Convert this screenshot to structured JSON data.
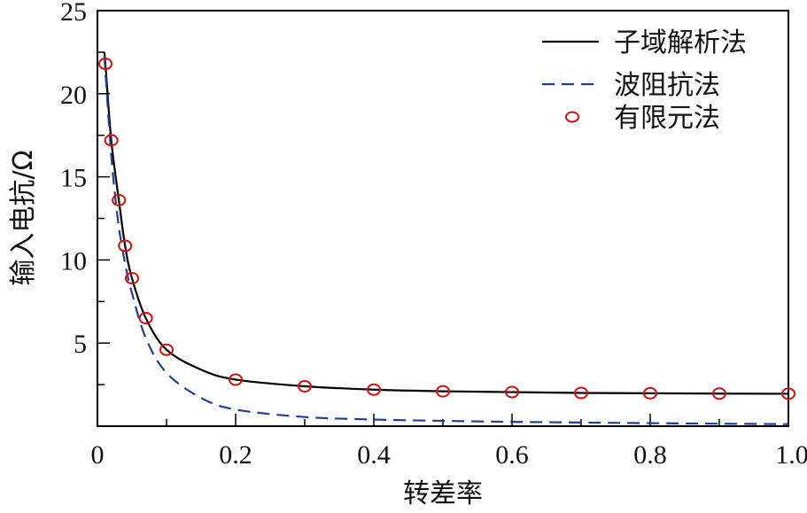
{
  "chart_data": {
    "type": "line",
    "title": "",
    "xlabel": "转差率",
    "ylabel": "输入电抗/Ω",
    "xlim": [
      0,
      1.0
    ],
    "ylim": [
      0,
      25
    ],
    "xticks": [
      0,
      0.2,
      0.4,
      0.6,
      0.8,
      1.0
    ],
    "xtick_labels": [
      "0",
      "0.2",
      "0.4",
      "0.6",
      "0.8",
      "1.0"
    ],
    "xminor_ticks": [
      0.1,
      0.3,
      0.5,
      0.7,
      0.9
    ],
    "yticks": [
      5,
      10,
      15,
      20,
      25
    ],
    "ytick_labels": [
      "5",
      "10",
      "15",
      "20",
      "25"
    ],
    "yminor_ticks": [
      2.5,
      7.5,
      12.5,
      17.5,
      22.5
    ],
    "grid": false,
    "legend_position": "upper right",
    "series": [
      {
        "name": "子域解析法",
        "style": "solid",
        "color": "#000000",
        "x": [
          0.01,
          0.0115,
          0.02,
          0.031,
          0.04,
          0.05,
          0.07,
          0.1,
          0.15,
          0.2,
          0.3,
          0.4,
          0.5,
          0.6,
          0.7,
          0.8,
          0.9,
          1.0
        ],
        "y": [
          22.5,
          21.8,
          17.2,
          13.6,
          10.85,
          8.9,
          6.5,
          4.6,
          3.4,
          2.8,
          2.4,
          2.2,
          2.1,
          2.05,
          2.0,
          1.98,
          1.96,
          1.95
        ]
      },
      {
        "name": "波阻抗法",
        "style": "dashed",
        "color": "#1f3f8f",
        "x": [
          0.01,
          0.02,
          0.03,
          0.04,
          0.05,
          0.07,
          0.1,
          0.15,
          0.2,
          0.3,
          0.4,
          0.5,
          0.6,
          0.7,
          0.8,
          0.9,
          1.0
        ],
        "y": [
          22.3,
          16.3,
          12.3,
          9.8,
          8.0,
          5.3,
          3.2,
          1.7,
          1.0,
          0.55,
          0.4,
          0.32,
          0.26,
          0.22,
          0.18,
          0.15,
          0.12
        ]
      },
      {
        "name": "有限元法",
        "style": "marker-circle",
        "color": "#d01010",
        "x": [
          0.0115,
          0.02,
          0.031,
          0.04,
          0.05,
          0.07,
          0.1,
          0.2,
          0.3,
          0.4,
          0.5,
          0.6,
          0.7,
          0.8,
          0.9,
          1.0
        ],
        "y": [
          21.8,
          17.2,
          13.6,
          10.85,
          8.9,
          6.5,
          4.6,
          2.8,
          2.4,
          2.2,
          2.1,
          2.05,
          2.0,
          1.98,
          1.96,
          1.95
        ]
      }
    ]
  },
  "legend": {
    "items": [
      {
        "label": "子域解析法",
        "icon": "solid-line"
      },
      {
        "label": "波阻抗法",
        "icon": "dashed-line"
      },
      {
        "label": "有限元法",
        "icon": "red-circle"
      }
    ]
  },
  "axes": {
    "xlabel": "转差率",
    "ylabel": "输入电抗/Ω"
  }
}
